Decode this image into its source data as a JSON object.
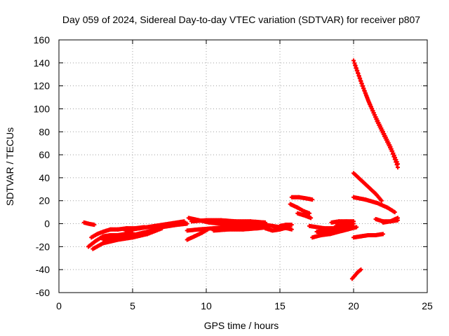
{
  "chart_data": {
    "type": "scatter",
    "title": "Day 059 of 2024, Sidereal Day-to-day VTEC variation (SDTVAR) for receiver p807",
    "xlabel": "GPS time / hours",
    "ylabel": "SDTVAR / TECUs",
    "xlim": [
      0,
      25
    ],
    "ylim": [
      -60,
      160
    ],
    "xticks": [
      0,
      5,
      10,
      15,
      20,
      25
    ],
    "yticks": [
      -60,
      -40,
      -20,
      0,
      20,
      40,
      60,
      80,
      100,
      120,
      140,
      160
    ],
    "grid": true,
    "legend": "none",
    "marker": "+",
    "color": "#ff0000",
    "tracks": [
      {
        "x": [
          1.7,
          2.0,
          2.4
        ],
        "y": [
          1,
          0,
          -1
        ]
      },
      {
        "x": [
          2.0,
          2.5,
          3.0,
          3.5,
          4.0,
          4.5,
          5.0
        ],
        "y": [
          -20,
          -15,
          -11,
          -10,
          -10,
          -9,
          -8
        ]
      },
      {
        "x": [
          2.2,
          2.6,
          3.0,
          3.5,
          4.0,
          4.6,
          5.2,
          5.8
        ],
        "y": [
          -12,
          -9,
          -7,
          -5,
          -5,
          -4,
          -4,
          -3
        ]
      },
      {
        "x": [
          2.3,
          3.0,
          4.0,
          5.0,
          6.0,
          7.0
        ],
        "y": [
          -22,
          -17,
          -14,
          -12,
          -9,
          -4
        ]
      },
      {
        "x": [
          3.0,
          4.0,
          5.0,
          6.0,
          7.0,
          8.0,
          8.7
        ],
        "y": [
          -14,
          -12,
          -10,
          -7,
          -3,
          -1,
          0
        ]
      },
      {
        "x": [
          4.5,
          5.5,
          6.5,
          7.5,
          8.5
        ],
        "y": [
          -6,
          -4,
          -2,
          0,
          2
        ]
      },
      {
        "x": [
          8.7,
          9.2,
          9.7,
          10.1
        ],
        "y": [
          -14,
          -11,
          -8,
          -5
        ]
      },
      {
        "x": [
          8.7,
          9.5,
          10.5,
          11.5,
          12.5,
          13.5
        ],
        "y": [
          -6,
          -5,
          -4,
          -3,
          -3,
          -2
        ]
      },
      {
        "x": [
          8.8,
          9.5,
          10.2,
          11.0,
          12.0,
          13.0,
          14.0
        ],
        "y": [
          5,
          3,
          1,
          0,
          -1,
          -1,
          -2
        ]
      },
      {
        "x": [
          9.0,
          10.0,
          11.0,
          12.0,
          13.0,
          14.0
        ],
        "y": [
          2,
          3,
          3,
          2,
          2,
          1
        ]
      },
      {
        "x": [
          10.5,
          11.5,
          12.5,
          13.5,
          14.2
        ],
        "y": [
          -6,
          -5,
          -5,
          -4,
          -3
        ]
      },
      {
        "x": [
          13.5,
          14.0,
          14.5,
          15.0,
          15.5,
          15.8
        ],
        "y": [
          0,
          -1,
          -2,
          -3,
          -4,
          -5
        ]
      },
      {
        "x": [
          14.0,
          14.5,
          15.0,
          15.6
        ],
        "y": [
          -4,
          -6,
          -5,
          -3
        ]
      },
      {
        "x": [
          15.0,
          15.4,
          15.8
        ],
        "y": [
          -2,
          -1,
          -1
        ]
      },
      {
        "x": [
          15.7,
          16.2,
          16.6,
          17.0
        ],
        "y": [
          17,
          14,
          11,
          9
        ]
      },
      {
        "x": [
          15.8,
          16.3,
          16.8,
          17.2
        ],
        "y": [
          23,
          23,
          22,
          21
        ]
      },
      {
        "x": [
          16.2,
          16.7,
          17.1
        ],
        "y": [
          9,
          7,
          5
        ]
      },
      {
        "x": [
          17.0,
          17.5,
          18.0,
          18.5,
          19.0,
          19.5,
          20.0
        ],
        "y": [
          -2,
          -3,
          -4,
          -4,
          -4,
          -3,
          -2
        ]
      },
      {
        "x": [
          17.2,
          17.8,
          18.4,
          19.0,
          19.6,
          20.2
        ],
        "y": [
          -12,
          -10,
          -9,
          -7,
          -5,
          -3
        ]
      },
      {
        "x": [
          17.5,
          18.0,
          18.6,
          19.2,
          19.8
        ],
        "y": [
          -7,
          -7,
          -6,
          -5,
          -4
        ]
      },
      {
        "x": [
          18.5,
          19.0,
          19.5,
          20.0
        ],
        "y": [
          1,
          2,
          2,
          2
        ]
      },
      {
        "x": [
          18.8,
          19.4,
          20.0
        ],
        "y": [
          -2,
          -1,
          0
        ]
      },
      {
        "x": [
          19.9,
          20.1,
          20.3,
          20.5
        ],
        "y": [
          -48,
          -45,
          -42,
          -40
        ]
      },
      {
        "x": [
          20.0,
          20.5,
          21.0,
          21.5,
          22.0
        ],
        "y": [
          -12,
          -11,
          -10,
          -10,
          -9
        ]
      },
      {
        "x": [
          20.0,
          20.5,
          21.0,
          21.5,
          21.9
        ],
        "y": [
          44,
          38,
          32,
          26,
          20
        ]
      },
      {
        "x": [
          20.0,
          20.8,
          21.6,
          22.3,
          22.8
        ],
        "y": [
          23,
          21,
          18,
          14,
          10
        ]
      },
      {
        "x": [
          20.0,
          20.5,
          21.0,
          21.5,
          22.0,
          22.5,
          23.0
        ],
        "y": [
          142,
          124,
          107,
          93,
          80,
          67,
          52
        ]
      },
      {
        "x": [
          20.1,
          20.6,
          21.1,
          21.6,
          22.1,
          22.6,
          23.0
        ],
        "y": [
          138,
          120,
          104,
          89,
          76,
          63,
          49
        ]
      },
      {
        "x": [
          21.5,
          22.0,
          22.5,
          23.0
        ],
        "y": [
          4,
          2,
          2,
          3
        ]
      },
      {
        "x": [
          22.0,
          22.5,
          23.0
        ],
        "y": [
          1,
          2,
          5
        ]
      }
    ]
  }
}
